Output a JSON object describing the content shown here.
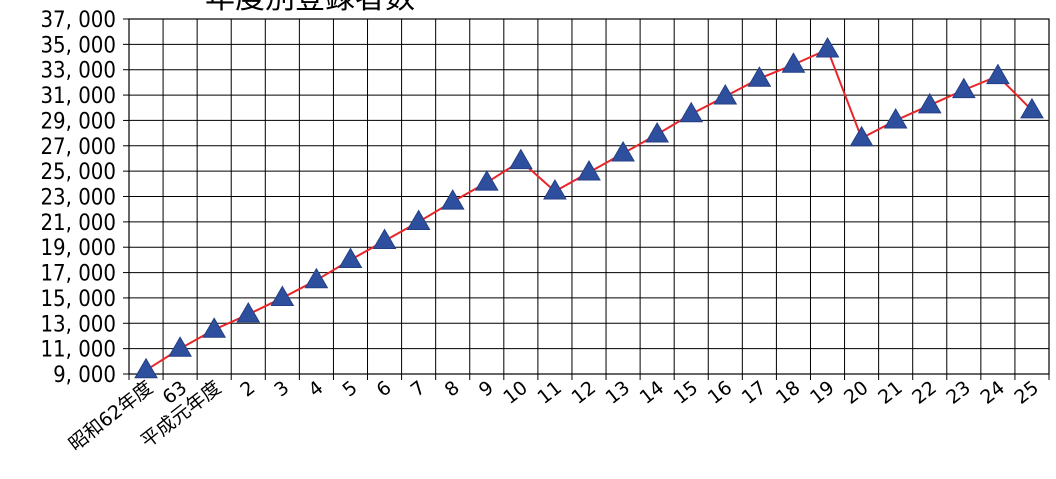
{
  "chart_data": {
    "type": "line",
    "title": "年度別登録者数",
    "xlabel": "",
    "ylabel": "",
    "categories": [
      "昭和62年度",
      "63",
      "平成元年度",
      "2",
      "3",
      "4",
      "5",
      "6",
      "7",
      "8",
      "9",
      "10",
      "11",
      "12",
      "13",
      "14",
      "15",
      "16",
      "17",
      "18",
      "19",
      "20",
      "21",
      "22",
      "23",
      "24",
      "25"
    ],
    "y_tick_labels": [
      "9, 000",
      "11, 000",
      "13, 000",
      "15, 000",
      "17, 000",
      "19, 000",
      "21, 000",
      "23, 000",
      "25, 000",
      "27, 000",
      "29, 000",
      "31, 000",
      "33, 000",
      "35, 000",
      "37, 000"
    ],
    "ylim": [
      9000,
      37000
    ],
    "grid": true,
    "legend": "none",
    "series": [
      {
        "values": [
          9300,
          11000,
          12500,
          13700,
          15000,
          16400,
          18000,
          19500,
          21000,
          22600,
          24100,
          25800,
          23400,
          24900,
          26400,
          27900,
          29500,
          30900,
          32300,
          33400,
          34600,
          27600,
          29000,
          30200,
          31400,
          32500,
          29800
        ],
        "line_color": "#e8262a",
        "marker_color": "#2e4f9e",
        "marker": "triangle"
      }
    ]
  }
}
